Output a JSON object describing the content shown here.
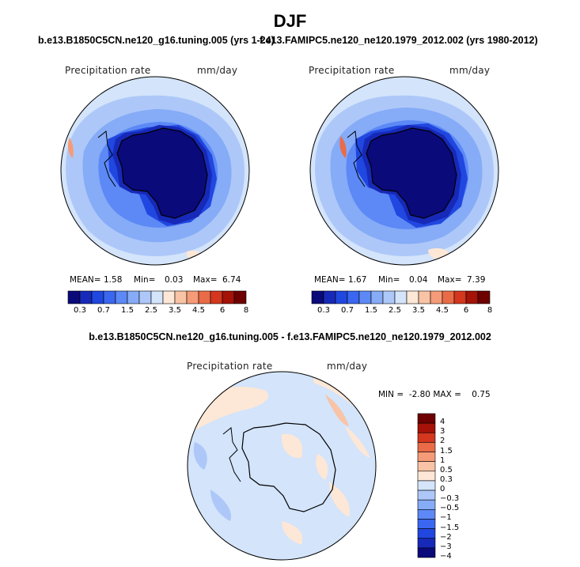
{
  "page": {
    "season": "DJF"
  },
  "panels": {
    "left": {
      "case_title": "b.e13.B1850C5CN.ne120_g16.tuning.005 (yrs 1-24)",
      "variable": "Precipitation rate",
      "units": "mm/day",
      "mean_label": "MEAN=",
      "mean_value": "1.58",
      "min_label": "Min=",
      "min_value": "0.03",
      "max_label": "Max=",
      "max_value": "6.74"
    },
    "right": {
      "case_title": "f.e13.FAMIPC5.ne120_ne120.1979_2012.002 (yrs 1980-2012)",
      "variable": "Precipitation rate",
      "units": "mm/day",
      "mean_label": "MEAN=",
      "mean_value": "1.67",
      "min_label": "Min=",
      "min_value": "0.04",
      "max_label": "Max=",
      "max_value": "7.39"
    },
    "diff": {
      "case_title": "b.e13.B1850C5CN.ne120_g16.tuning.005 - f.e13.FAMIPC5.ne120_ne120.1979_2012.002",
      "variable": "Precipitation rate",
      "units": "mm/day",
      "minmax_text": "MIN =  -2.80 MAX =    0.75"
    }
  },
  "colorbars": {
    "abs_colors": [
      "#0a0a7a",
      "#1729b8",
      "#2047e0",
      "#3a66f0",
      "#5c89f5",
      "#86abf7",
      "#adc8f8",
      "#d3e4fb",
      "#fde7d6",
      "#f9c3a5",
      "#f59b78",
      "#ea6b48",
      "#d4361e",
      "#a41208",
      "#6e0000"
    ],
    "abs_ticks": [
      "0.3",
      "0.7",
      "1.5",
      "2.5",
      "3.5",
      "4.5",
      "6",
      "8"
    ],
    "diff_colors": [
      "#0a0a7a",
      "#1729b8",
      "#2047e0",
      "#3a66f0",
      "#5c89f5",
      "#86abf7",
      "#adc8f8",
      "#d3e4fb",
      "#fde7d6",
      "#f9c3a5",
      "#f59b78",
      "#ea6b48",
      "#d4361e",
      "#a41208",
      "#6e0000"
    ],
    "diff_ticks": [
      "4",
      "3",
      "2",
      "1.5",
      "1",
      "0.5",
      "0.3",
      "0",
      "−0.3",
      "−0.5",
      "−1",
      "−1.5",
      "−2",
      "−3",
      "−4"
    ]
  }
}
